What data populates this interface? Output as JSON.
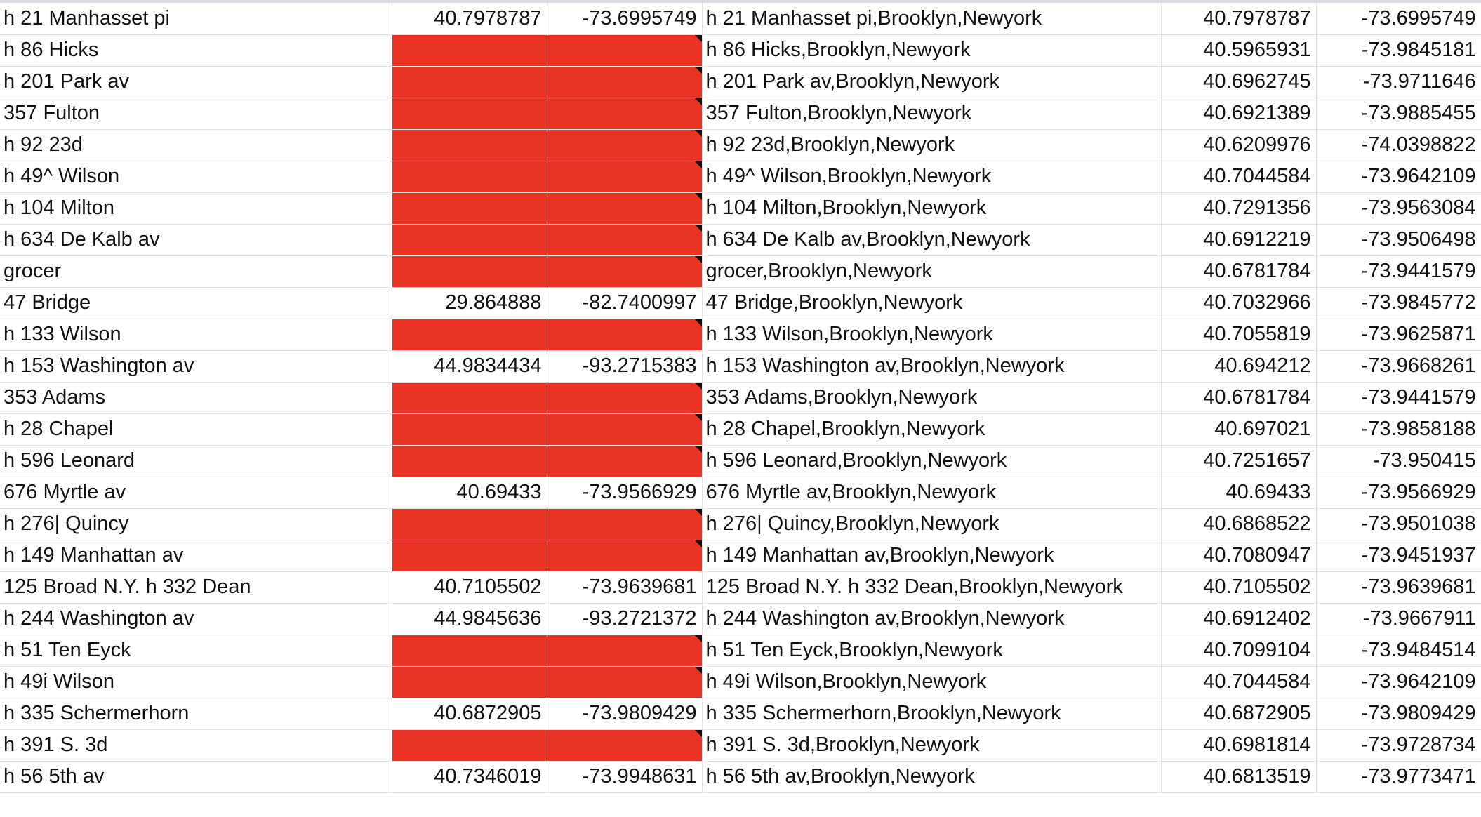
{
  "sheet": {
    "rows": [
      {
        "address": "h 21 Manhasset pi",
        "lat": "40.7978787",
        "lng": "-73.6995749",
        "full_address": "h 21 Manhasset pi,Brooklyn,Newyork",
        "geo_lat": "40.7978787",
        "geo_lng": "-73.6995749",
        "flagged": false
      },
      {
        "address": "h 86 Hicks",
        "lat": "",
        "lng": "",
        "full_address": "h 86 Hicks,Brooklyn,Newyork",
        "geo_lat": "40.5965931",
        "geo_lng": "-73.9845181",
        "flagged": true
      },
      {
        "address": "h 201 Park av",
        "lat": "",
        "lng": "",
        "full_address": "h 201 Park av,Brooklyn,Newyork",
        "geo_lat": "40.6962745",
        "geo_lng": "-73.9711646",
        "flagged": true
      },
      {
        "address": "357 Fulton",
        "lat": "",
        "lng": "",
        "full_address": "357 Fulton,Brooklyn,Newyork",
        "geo_lat": "40.6921389",
        "geo_lng": "-73.9885455",
        "flagged": true
      },
      {
        "address": "h 92 23d",
        "lat": "",
        "lng": "",
        "full_address": "h 92 23d,Brooklyn,Newyork",
        "geo_lat": "40.6209976",
        "geo_lng": "-74.0398822",
        "flagged": true
      },
      {
        "address": "h 49^ Wilson",
        "lat": "",
        "lng": "",
        "full_address": "h 49^ Wilson,Brooklyn,Newyork",
        "geo_lat": "40.7044584",
        "geo_lng": "-73.9642109",
        "flagged": true
      },
      {
        "address": "h 104 Milton",
        "lat": "",
        "lng": "",
        "full_address": "h 104 Milton,Brooklyn,Newyork",
        "geo_lat": "40.7291356",
        "geo_lng": "-73.9563084",
        "flagged": true
      },
      {
        "address": "h 634 De Kalb av",
        "lat": "",
        "lng": "",
        "full_address": "h 634 De Kalb av,Brooklyn,Newyork",
        "geo_lat": "40.6912219",
        "geo_lng": "-73.9506498",
        "flagged": true
      },
      {
        "address": "grocer",
        "lat": "",
        "lng": "",
        "full_address": "grocer,Brooklyn,Newyork",
        "geo_lat": "40.6781784",
        "geo_lng": "-73.9441579",
        "flagged": true
      },
      {
        "address": "47 Bridge",
        "lat": "29.864888",
        "lng": "-82.7400997",
        "full_address": "47 Bridge,Brooklyn,Newyork",
        "geo_lat": "40.7032966",
        "geo_lng": "-73.9845772",
        "flagged": false
      },
      {
        "address": "h 133 Wilson",
        "lat": "",
        "lng": "",
        "full_address": "h 133 Wilson,Brooklyn,Newyork",
        "geo_lat": "40.7055819",
        "geo_lng": "-73.9625871",
        "flagged": true
      },
      {
        "address": "h 153 Washington av",
        "lat": "44.9834434",
        "lng": "-93.2715383",
        "full_address": "h 153 Washington av,Brooklyn,Newyork",
        "geo_lat": "40.694212",
        "geo_lng": "-73.9668261",
        "flagged": false
      },
      {
        "address": "353 Adams",
        "lat": "",
        "lng": "",
        "full_address": "353 Adams,Brooklyn,Newyork",
        "geo_lat": "40.6781784",
        "geo_lng": "-73.9441579",
        "flagged": true
      },
      {
        "address": "h 28 Chapel",
        "lat": "",
        "lng": "",
        "full_address": "h 28 Chapel,Brooklyn,Newyork",
        "geo_lat": "40.697021",
        "geo_lng": "-73.9858188",
        "flagged": true
      },
      {
        "address": "h 596 Leonard",
        "lat": "",
        "lng": "",
        "full_address": "h 596 Leonard,Brooklyn,Newyork",
        "geo_lat": "40.7251657",
        "geo_lng": "-73.950415",
        "flagged": true
      },
      {
        "address": "676 Myrtle av",
        "lat": "40.69433",
        "lng": "-73.9566929",
        "full_address": "676 Myrtle av,Brooklyn,Newyork",
        "geo_lat": "40.69433",
        "geo_lng": "-73.9566929",
        "flagged": false
      },
      {
        "address": "h 276| Quincy",
        "lat": "",
        "lng": "",
        "full_address": "h 276| Quincy,Brooklyn,Newyork",
        "geo_lat": "40.6868522",
        "geo_lng": "-73.9501038",
        "flagged": true
      },
      {
        "address": "h 149 Manhattan av",
        "lat": "",
        "lng": "",
        "full_address": "h 149 Manhattan av,Brooklyn,Newyork",
        "geo_lat": "40.7080947",
        "geo_lng": "-73.9451937",
        "flagged": true
      },
      {
        "address": "125 Broad N.Y. h 332 Dean",
        "lat": "40.7105502",
        "lng": "-73.9639681",
        "full_address": "125 Broad N.Y. h 332 Dean,Brooklyn,Newyork",
        "geo_lat": "40.7105502",
        "geo_lng": "-73.9639681",
        "flagged": false
      },
      {
        "address": "h 244 Washington av",
        "lat": "44.9845636",
        "lng": "-93.2721372",
        "full_address": "h 244 Washington av,Brooklyn,Newyork",
        "geo_lat": "40.6912402",
        "geo_lng": "-73.9667911",
        "flagged": false
      },
      {
        "address": "h 51 Ten Eyck",
        "lat": "",
        "lng": "",
        "full_address": "h 51 Ten Eyck,Brooklyn,Newyork",
        "geo_lat": "40.7099104",
        "geo_lng": "-73.9484514",
        "flagged": true
      },
      {
        "address": "h 49i Wilson",
        "lat": "",
        "lng": "",
        "full_address": "h 49i Wilson,Brooklyn,Newyork",
        "geo_lat": "40.7044584",
        "geo_lng": "-73.9642109",
        "flagged": true
      },
      {
        "address": "h 335 Schermerhorn",
        "lat": "40.6872905",
        "lng": "-73.9809429",
        "full_address": "h 335 Schermerhorn,Brooklyn,Newyork",
        "geo_lat": "40.6872905",
        "geo_lng": "-73.9809429",
        "flagged": false
      },
      {
        "address": "h 391 S. 3d",
        "lat": "",
        "lng": "",
        "full_address": "h 391 S. 3d,Brooklyn,Newyork",
        "geo_lat": "40.6981814",
        "geo_lng": "-73.9728734",
        "flagged": true
      },
      {
        "address": "h 56 5th av",
        "lat": "40.7346019",
        "lng": "-73.9948631",
        "full_address": "h 56 5th av,Brooklyn,Newyork",
        "geo_lat": "40.6813519",
        "geo_lng": "-73.9773471",
        "flagged": false
      }
    ],
    "flag_color": "#ea3323"
  }
}
